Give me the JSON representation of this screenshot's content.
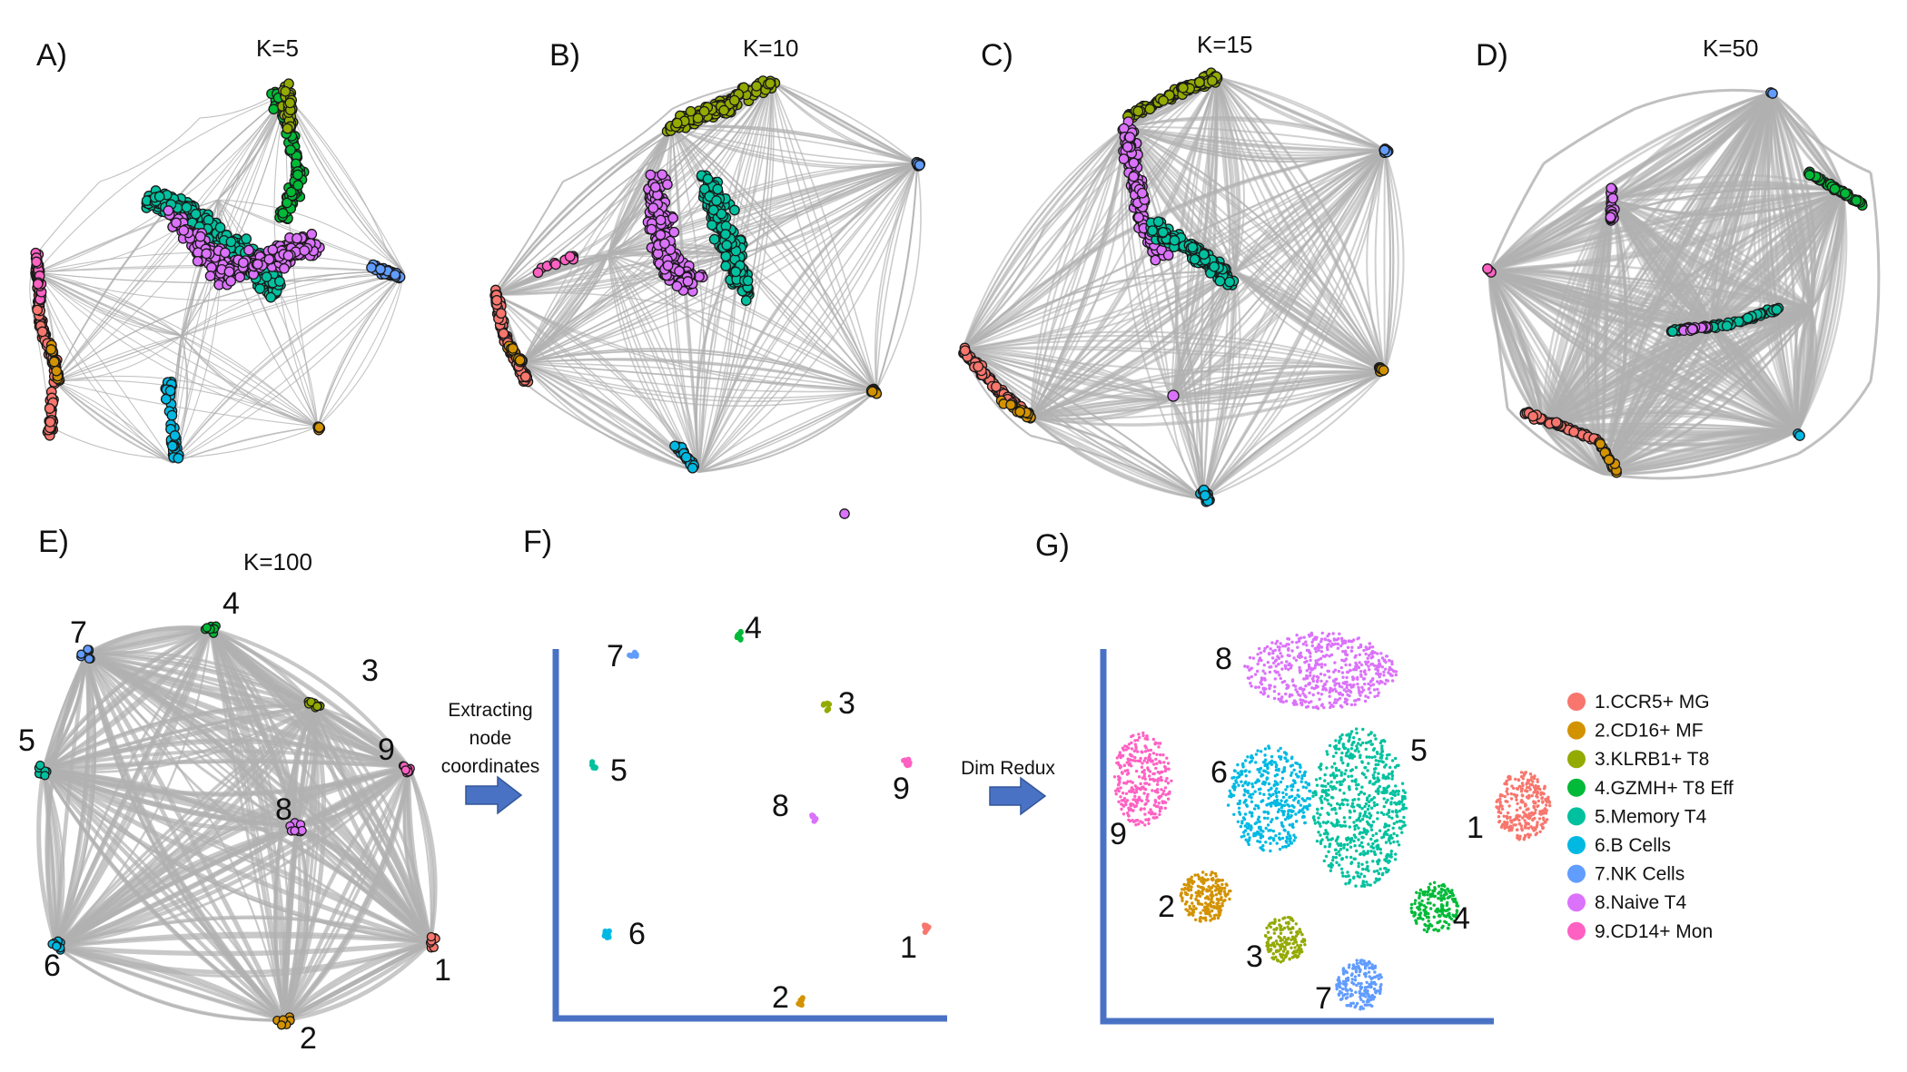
{
  "panels": {
    "A": {
      "letter": "A)",
      "title": "K=5"
    },
    "B": {
      "letter": "B)",
      "title": "K=10"
    },
    "C": {
      "letter": "C)",
      "title": "K=15"
    },
    "D": {
      "letter": "D)",
      "title": "K=50"
    },
    "E": {
      "letter": "E)",
      "title": "K=100"
    },
    "F": {
      "letter": "F)"
    },
    "G": {
      "letter": "G)"
    }
  },
  "arrows": {
    "extract": {
      "lines": [
        "Extracting",
        "node",
        "coordinates"
      ]
    },
    "dimredux": {
      "label": "Dim Redux"
    }
  },
  "node_numbers": [
    "1",
    "2",
    "3",
    "4",
    "5",
    "6",
    "7",
    "8",
    "9"
  ],
  "legend": [
    {
      "label": "1.CCR5+ MG",
      "color": "#F8766D"
    },
    {
      "label": "2.CD16+ MF",
      "color": "#D39200"
    },
    {
      "label": "3.KLRB1+ T8",
      "color": "#93AA00"
    },
    {
      "label": "4.GZMH+ T8 Eff",
      "color": "#00BA38"
    },
    {
      "label": "5.Memory T4",
      "color": "#00C19F"
    },
    {
      "label": "6.B Cells",
      "color": "#00B9E3"
    },
    {
      "label": "7.NK Cells",
      "color": "#619CFF"
    },
    {
      "label": "8.Naive T4",
      "color": "#DB72FB"
    },
    {
      "label": "9.CD14+ Mon",
      "color": "#FF61C3"
    }
  ]
}
